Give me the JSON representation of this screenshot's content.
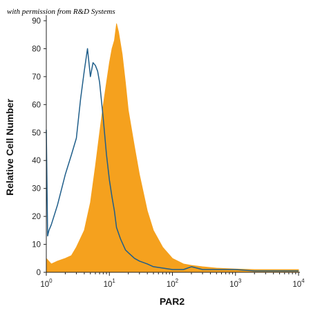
{
  "credit": "with permission from R&D Systems",
  "chart_data": {
    "type": "area",
    "title": "",
    "xlabel": "PAR2",
    "ylabel": "Relative Cell Number",
    "xscale": "log",
    "xlim": [
      1,
      10000
    ],
    "ylim": [
      0,
      90
    ],
    "yticks": [
      0,
      10,
      20,
      30,
      40,
      50,
      60,
      70,
      80,
      90
    ],
    "xticks": [
      {
        "value": 1,
        "base": "10",
        "exp": "0"
      },
      {
        "value": 10,
        "base": "10",
        "exp": "1"
      },
      {
        "value": 100,
        "base": "10",
        "exp": "2"
      },
      {
        "value": 1000,
        "base": "10",
        "exp": "3"
      },
      {
        "value": 10000,
        "base": "10",
        "exp": "4"
      }
    ],
    "series": [
      {
        "style": "filled",
        "color": "#F5A11E",
        "x": [
          1,
          1.2,
          1.5,
          2,
          2.5,
          3,
          4,
          5,
          6,
          7,
          8,
          9,
          10,
          11,
          12,
          13,
          14,
          16,
          18,
          20,
          25,
          30,
          40,
          50,
          70,
          100,
          150,
          200,
          300,
          500,
          1000,
          2000,
          5000,
          10000
        ],
        "y": [
          5,
          3,
          4,
          5,
          6,
          9,
          15,
          25,
          38,
          50,
          60,
          68,
          75,
          80,
          83,
          89,
          86,
          78,
          68,
          58,
          45,
          35,
          22,
          15,
          9,
          5,
          3,
          2.5,
          2,
          1.5,
          1.2,
          1,
          1,
          1
        ]
      },
      {
        "style": "line",
        "color": "#1F5E8A",
        "x": [
          1,
          1.05,
          1.1,
          1.2,
          1.5,
          2,
          2.5,
          3,
          3.5,
          4,
          4.5,
          5,
          5.5,
          6,
          6.5,
          7,
          8,
          9,
          10,
          11,
          12,
          13,
          15,
          18,
          20,
          25,
          30,
          40,
          50,
          70,
          100,
          150,
          200,
          300,
          400,
          500,
          1000,
          2000,
          5000,
          10000
        ],
        "y": [
          51,
          13,
          15,
          17,
          24,
          35,
          42,
          48,
          62,
          72,
          80,
          70,
          75,
          74,
          72,
          68,
          55,
          42,
          33,
          27,
          22,
          16,
          12,
          8,
          7,
          5,
          4,
          3,
          2,
          1.5,
          1,
          1,
          2,
          1,
          1,
          1,
          1,
          0.5,
          0.5,
          0.5
        ]
      }
    ]
  }
}
